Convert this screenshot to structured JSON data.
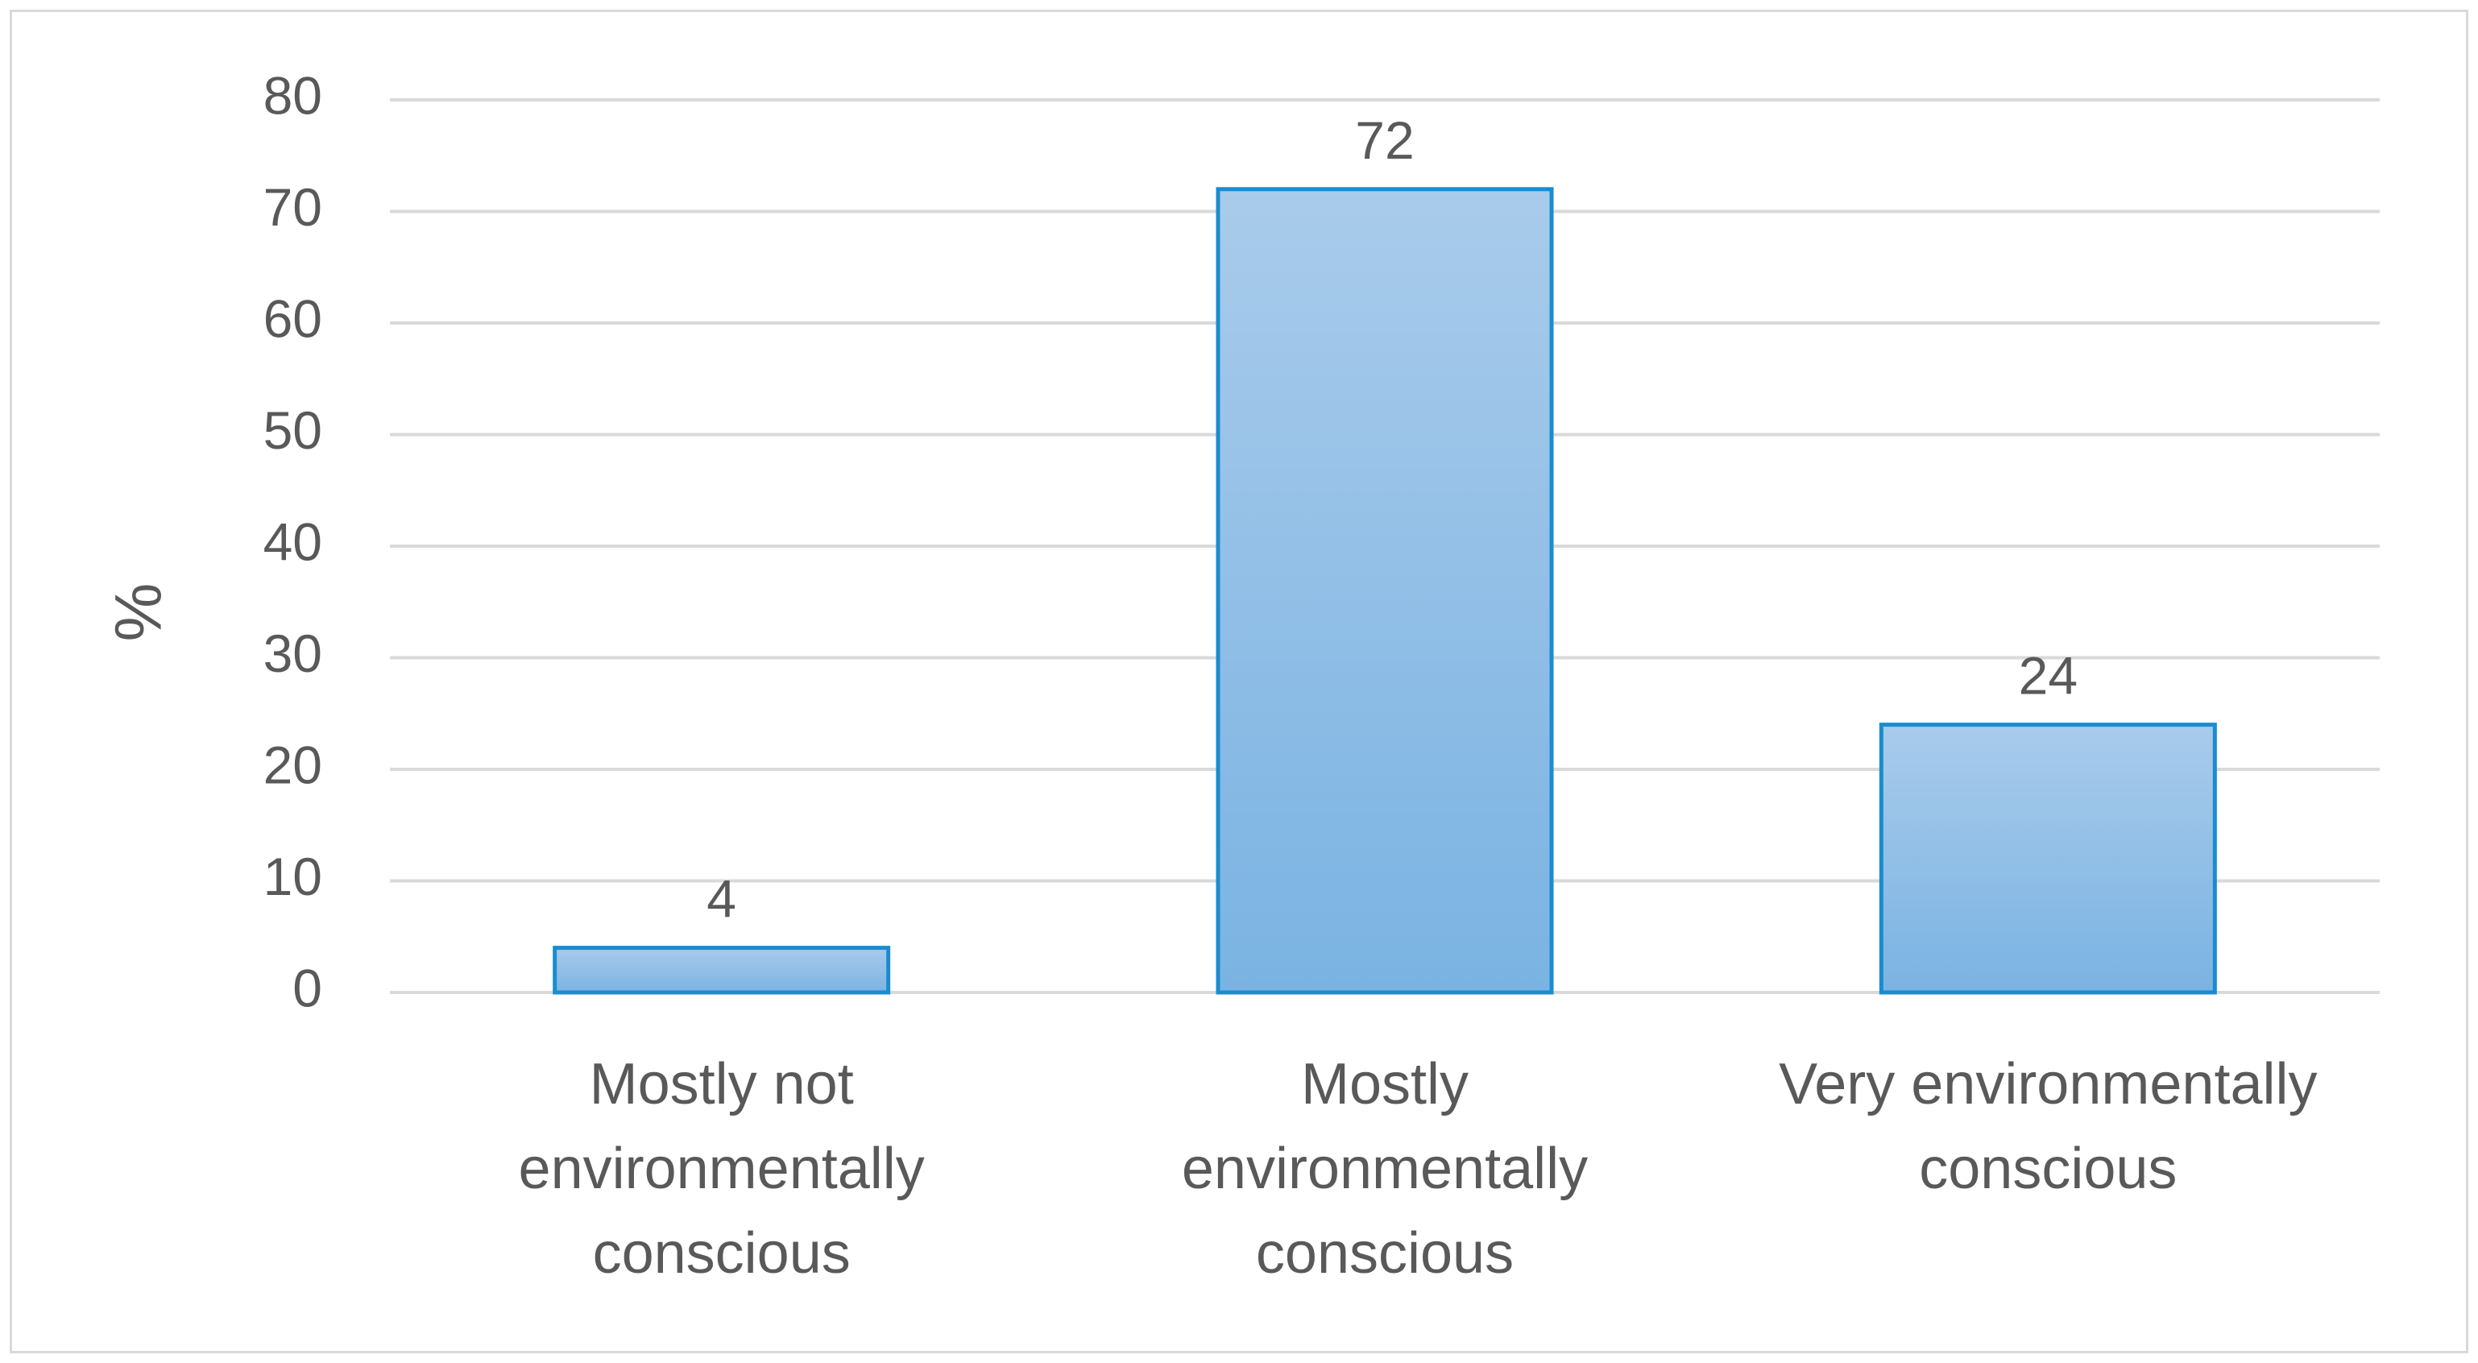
{
  "chart_data": {
    "type": "bar",
    "title": "",
    "xlabel": "",
    "ylabel": "%",
    "ylim": [
      0,
      80
    ],
    "yticks": [
      0,
      10,
      20,
      30,
      40,
      50,
      60,
      70,
      80
    ],
    "grid": true,
    "legend": "none",
    "categories": [
      "Mostly not environmentally conscious",
      "Mostly environmentally conscious",
      "Very environmentally conscious"
    ],
    "category_lines": [
      [
        "Mostly not",
        "environmentally",
        "conscious"
      ],
      [
        "Mostly",
        "environmentally",
        "conscious"
      ],
      [
        "Very environmentally",
        "conscious"
      ]
    ],
    "values": [
      4,
      72,
      24
    ],
    "data_labels": [
      "4",
      "72",
      "24"
    ],
    "colors": {
      "bar_fill_top": "#a9cbeb",
      "bar_fill_bottom": "#7ab3e2",
      "bar_stroke": "#1a8ccf",
      "gridline": "#d9d9d9",
      "text": "#595959",
      "frame": "#d9d9d9"
    }
  }
}
